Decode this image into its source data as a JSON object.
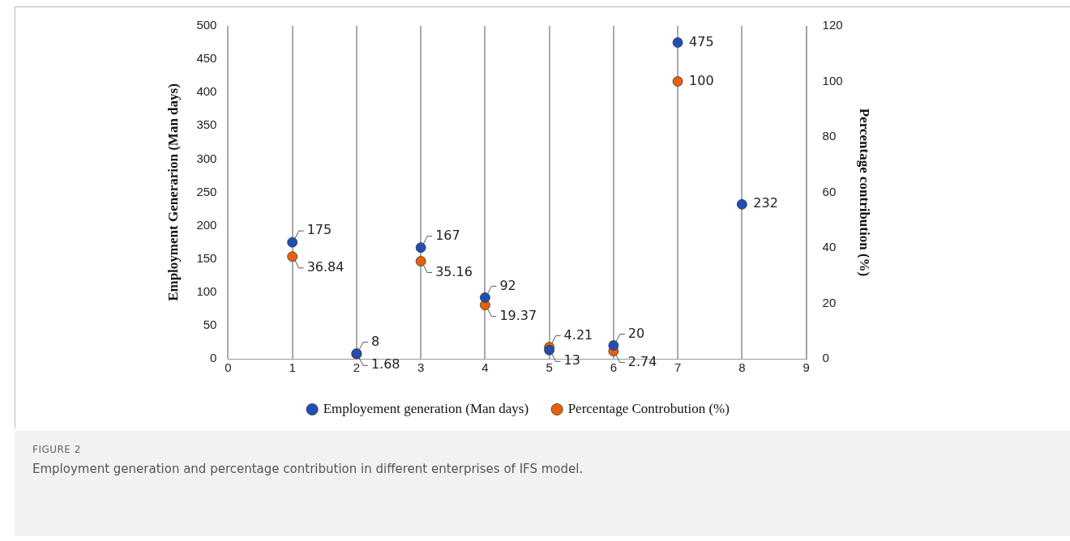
{
  "chart_data": {
    "type": "scatter",
    "xlabel": null,
    "ylabel": "Employment Generarion (Man days)",
    "y2label": "Percentage contribution (%)",
    "x": [
      1,
      2,
      3,
      4,
      5,
      6,
      7,
      8
    ],
    "series": [
      {
        "name": "Employement generation (Man days)",
        "color": "#1f4fb4",
        "values": [
          175,
          8,
          167,
          92,
          13,
          20,
          475,
          232
        ]
      },
      {
        "name": "Percentage Controbution (%)",
        "color": "#e8600c",
        "axis": "y2",
        "values": [
          36.84,
          1.68,
          35.16,
          19.37,
          4.21,
          2.74,
          100,
          null
        ]
      }
    ],
    "xlim": [
      0,
      9
    ],
    "xticks": [
      0,
      1,
      2,
      3,
      4,
      5,
      6,
      7,
      8,
      9
    ],
    "ylim": [
      0,
      500
    ],
    "yticks": [
      0,
      50,
      100,
      150,
      200,
      250,
      300,
      350,
      400,
      450,
      500
    ],
    "y2lim": [
      0,
      120
    ],
    "y2ticks": [
      0,
      20,
      40,
      60,
      80,
      100,
      120
    ],
    "grid": "x",
    "legend": "bottom",
    "marker": "circle",
    "data_labels": true,
    "annotations": [
      "FIGURE 2",
      "Employment generation and percentage contribution in different enterprises of IFS model."
    ]
  }
}
